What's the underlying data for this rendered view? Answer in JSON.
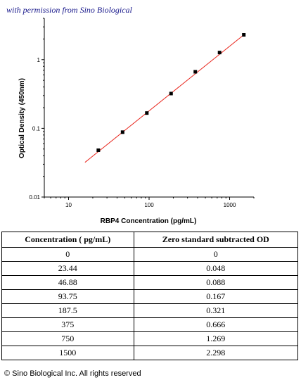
{
  "watermark": "with permission from Sino Biological",
  "copyright": "© Sino Biological Inc. All rights reserved",
  "chart_data": {
    "type": "scatter",
    "xlabel": "RBP4 Concentration (pg/mL)",
    "ylabel": "Optical Density (450nm)",
    "x_scale": "log",
    "y_scale": "log",
    "xlim": [
      5,
      2000
    ],
    "ylim": [
      0.01,
      4
    ],
    "x_ticks": [
      10,
      100,
      1000
    ],
    "x_tick_labels": [
      "10",
      "100",
      "1000"
    ],
    "y_ticks": [
      0.01,
      0.1,
      1
    ],
    "y_tick_labels": [
      "0.01",
      "0.1",
      "1"
    ],
    "grid": false,
    "points_color": "#000000",
    "fit_color": "#e8231a",
    "x": [
      23.44,
      46.88,
      93.75,
      187.5,
      375,
      750,
      1500
    ],
    "y": [
      0.048,
      0.088,
      0.167,
      0.321,
      0.666,
      1.269,
      2.298
    ],
    "fit_line": {
      "x": [
        16,
        1500
      ],
      "y": [
        0.032,
        2.298
      ]
    }
  },
  "table": {
    "headers": [
      "Concentration ( pg/mL)",
      "Zero standard subtracted OD"
    ],
    "rows": [
      [
        "0",
        "0"
      ],
      [
        "23.44",
        "0.048"
      ],
      [
        "46.88",
        "0.088"
      ],
      [
        "93.75",
        "0.167"
      ],
      [
        "187.5",
        "0.321"
      ],
      [
        "375",
        "0.666"
      ],
      [
        "750",
        "1.269"
      ],
      [
        "1500",
        "2.298"
      ]
    ]
  }
}
